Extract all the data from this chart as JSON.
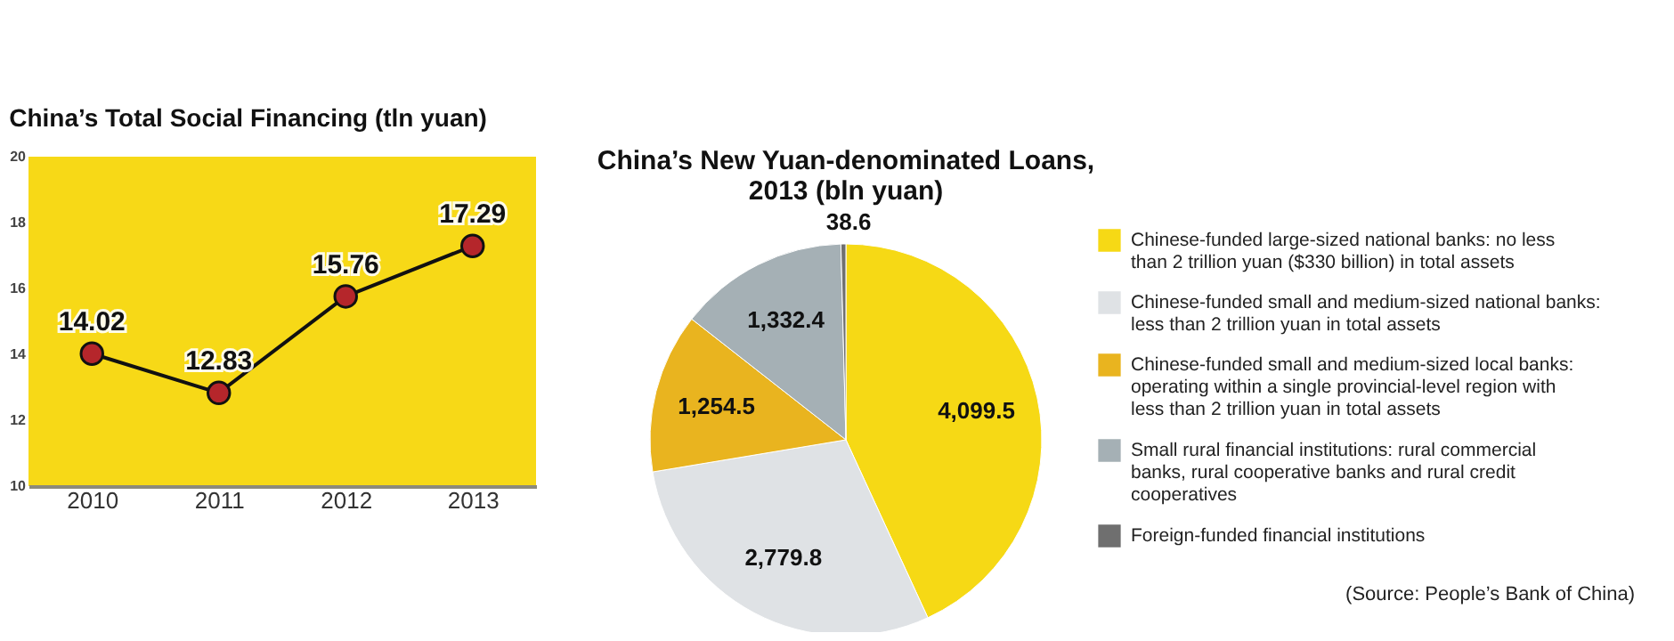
{
  "chart_data": [
    {
      "type": "line",
      "title": "China’s Total Social Financing (tln yuan)",
      "categories": [
        "2010",
        "2011",
        "2012",
        "2013"
      ],
      "series": [
        {
          "color": "#b5262b",
          "values": [
            14.02,
            12.83,
            15.76,
            17.29
          ]
        }
      ],
      "ylim": [
        10,
        20
      ],
      "yticks": [
        10,
        12,
        14,
        16,
        18,
        20
      ],
      "grid": false,
      "marker": "circle",
      "line_style": "solid",
      "data_labels": true
    },
    {
      "type": "pie",
      "title": "China’s New Yuan-denominated Loans, 2013 (bln yuan)",
      "categories": [
        "Chinese-funded large-sized national banks: no less than 2 trillion yuan ($330 billion) in total assets",
        "Chinese-funded small and medium-sized national banks: less than 2 trillion yuan in total assets",
        "Chinese-funded small and medium-sized local banks: operating within a single provincial-level region with less than 2 trillion yuan in total assets",
        "Small rural financial institutions: rural commercial banks, rural cooperative banks and rural credit cooperatives",
        "Foreign-funded financial institutions"
      ],
      "values": [
        4099.5,
        2779.8,
        1254.5,
        1332.4,
        38.6
      ],
      "colors": [
        "#f6d915",
        "#dfe2e5",
        "#e9b41f",
        "#a5b0b5",
        "#6f6f6f"
      ],
      "value_labels": [
        "4,099.5",
        "2,779.8",
        "1,254.5",
        "1,332.4",
        "38.6"
      ],
      "legend": "right",
      "annotations": [
        "(Source: People’s Bank of China)"
      ]
    }
  ]
}
